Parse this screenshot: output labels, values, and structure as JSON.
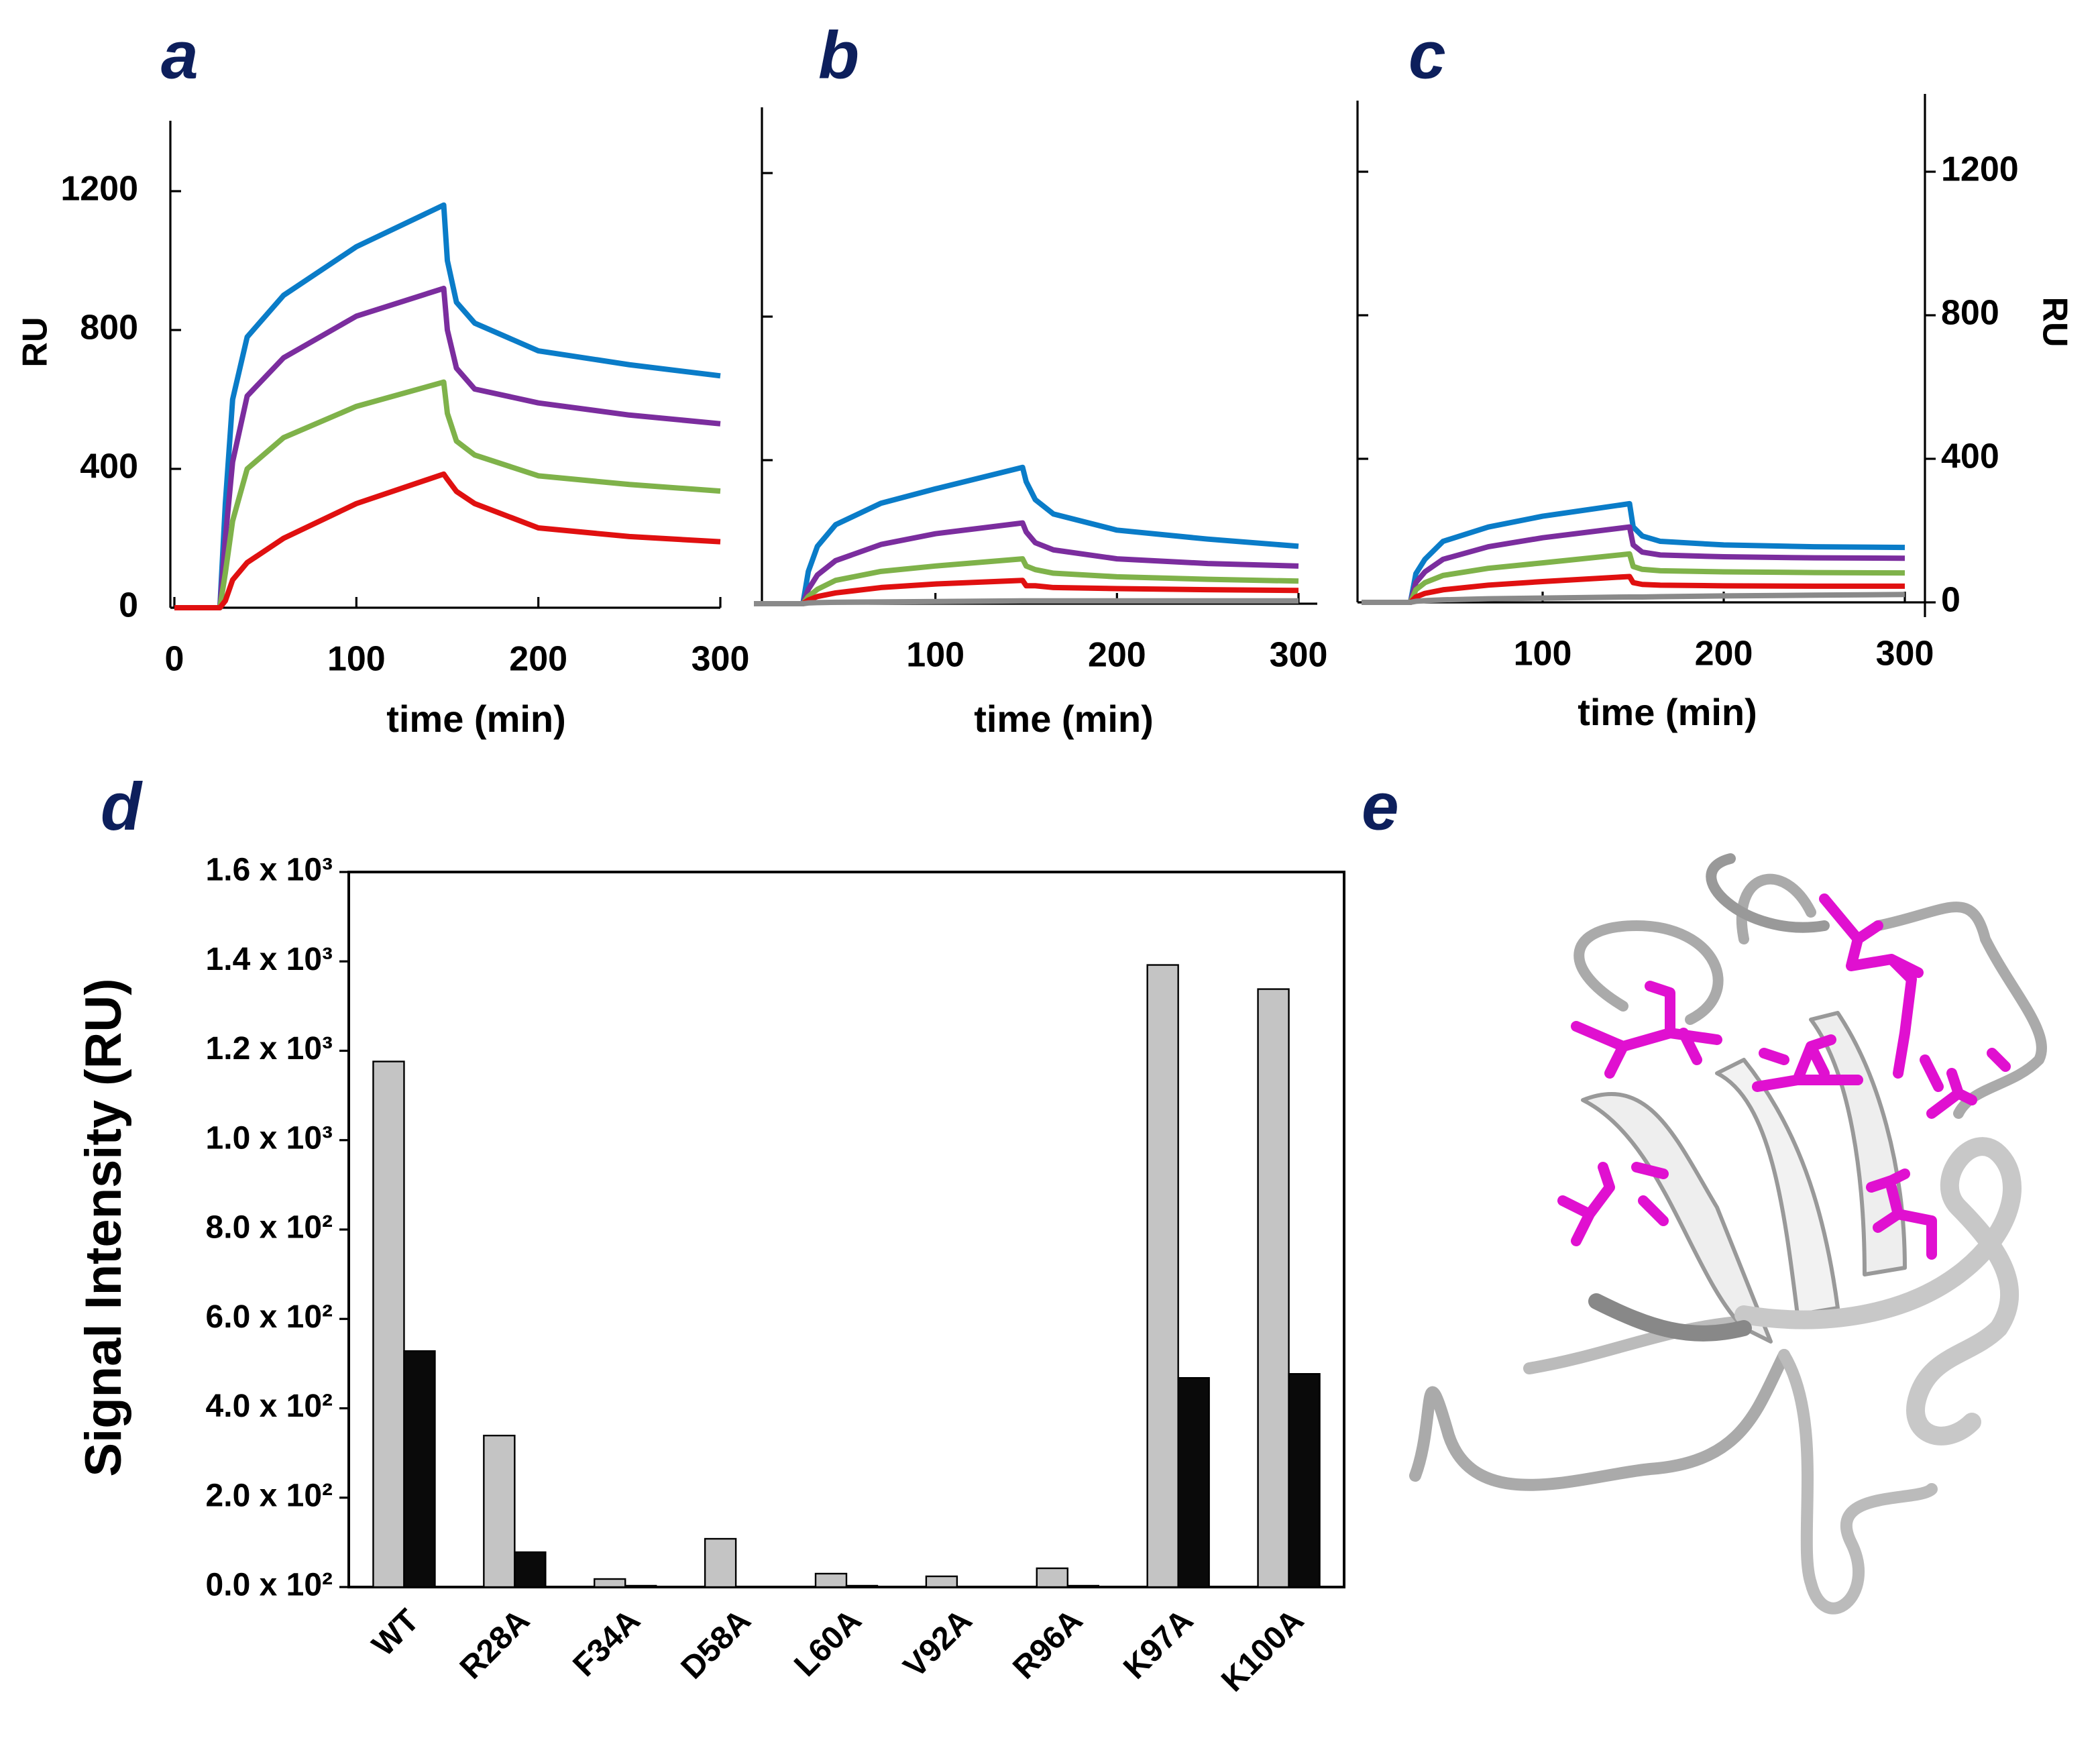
{
  "chart_data": [
    {
      "type": "line",
      "title": "a",
      "xlabel": "time (min)",
      "ylabel": "RU",
      "x": [
        0,
        25,
        28,
        32,
        40,
        60,
        100,
        148,
        150,
        155,
        165,
        200,
        250,
        300
      ],
      "series": [
        {
          "color": "#0a7cc8",
          "values": [
            0,
            0,
            300,
            600,
            780,
            900,
            1040,
            1160,
            1000,
            880,
            820,
            740,
            700,
            668
          ]
        },
        {
          "color": "#7b2d9e",
          "values": [
            0,
            0,
            200,
            420,
            610,
            720,
            840,
            920,
            800,
            690,
            630,
            590,
            555,
            530
          ]
        },
        {
          "color": "#7fb24a",
          "values": [
            0,
            0,
            100,
            250,
            400,
            490,
            580,
            650,
            560,
            480,
            440,
            380,
            355,
            336
          ]
        },
        {
          "color": "#e01010",
          "values": [
            0,
            0,
            20,
            80,
            130,
            200,
            300,
            385,
            370,
            335,
            300,
            230,
            205,
            190
          ]
        }
      ],
      "xlim": [
        0,
        300
      ],
      "xticks": [
        0,
        100,
        200,
        300
      ],
      "ylim": [
        0,
        1400
      ],
      "yticks": [
        0,
        400,
        800,
        1200
      ]
    },
    {
      "type": "line",
      "title": "b",
      "xlabel": "time (min)",
      "x": [
        0,
        27,
        30,
        35,
        45,
        70,
        100,
        148,
        150,
        155,
        165,
        200,
        250,
        300
      ],
      "series": [
        {
          "color": "#0a7cc8",
          "values": [
            0,
            0,
            90,
            160,
            220,
            280,
            320,
            380,
            340,
            290,
            250,
            205,
            180,
            160
          ]
        },
        {
          "color": "#7b2d9e",
          "values": [
            0,
            0,
            40,
            80,
            120,
            165,
            195,
            225,
            200,
            170,
            150,
            125,
            112,
            105
          ]
        },
        {
          "color": "#7fb24a",
          "values": [
            0,
            0,
            20,
            40,
            65,
            90,
            105,
            125,
            105,
            95,
            85,
            75,
            68,
            63
          ]
        },
        {
          "color": "#e01010",
          "values": [
            0,
            0,
            10,
            20,
            30,
            45,
            55,
            65,
            50,
            50,
            45,
            42,
            39,
            37
          ]
        },
        {
          "color": "#8a8a8a",
          "values": [
            0,
            0,
            2,
            3,
            4,
            5,
            6,
            8,
            8,
            8,
            8,
            8,
            8,
            8
          ]
        }
      ],
      "xlim": [
        0,
        300
      ],
      "xticks": [
        100,
        200,
        300
      ],
      "ylim": [
        0,
        1400
      ],
      "yticks": [
        0,
        400,
        800,
        1200
      ],
      "ytick_labels": false
    },
    {
      "type": "line",
      "title": "c",
      "xlabel": "time (min)",
      "ylabel": "RU",
      "x": [
        0,
        27,
        30,
        35,
        45,
        70,
        100,
        148,
        150,
        155,
        165,
        200,
        250,
        300
      ],
      "series": [
        {
          "color": "#0a7cc8",
          "values": [
            0,
            0,
            80,
            120,
            170,
            210,
            240,
            275,
            210,
            185,
            170,
            160,
            155,
            153
          ]
        },
        {
          "color": "#7b2d9e",
          "values": [
            0,
            0,
            55,
            85,
            120,
            155,
            180,
            210,
            160,
            140,
            132,
            127,
            124,
            123
          ]
        },
        {
          "color": "#7fb24a",
          "values": [
            0,
            0,
            35,
            55,
            75,
            95,
            110,
            135,
            100,
            92,
            88,
            85,
            83,
            82
          ]
        },
        {
          "color": "#e01010",
          "values": [
            0,
            0,
            15,
            25,
            35,
            48,
            58,
            72,
            55,
            50,
            48,
            46,
            45,
            45
          ]
        },
        {
          "color": "#8a8a8a",
          "values": [
            0,
            0,
            3,
            5,
            7,
            10,
            12,
            15,
            15,
            15,
            16,
            18,
            20,
            22
          ]
        }
      ],
      "xlim": [
        0,
        300
      ],
      "xticks": [
        100,
        200,
        300
      ],
      "ylim": [
        0,
        1400
      ],
      "yticks": [
        0,
        400,
        800,
        1200
      ],
      "y_axis_side": "right"
    },
    {
      "type": "bar",
      "title": "d",
      "ylabel": "Signal Intensity (RU)",
      "categories": [
        "WT",
        "R28A",
        "F34A",
        "D58A",
        "L60A",
        "V92A",
        "R96A",
        "K97A",
        "K100A"
      ],
      "series": [
        {
          "color": "#c4c4c4",
          "values": [
            1176,
            339,
            18,
            108,
            30,
            24,
            42,
            1392,
            1338
          ]
        },
        {
          "color": "#0a0a0a",
          "values": [
            528,
            78,
            3,
            1,
            3,
            1,
            3,
            468,
            477
          ]
        }
      ],
      "ylim": [
        0,
        1600
      ],
      "yticks": [
        {
          "value": 0,
          "label": "0.0 x 10²"
        },
        {
          "value": 200,
          "label": "2.0 x 10²"
        },
        {
          "value": 400,
          "label": "4.0 x 10²"
        },
        {
          "value": 600,
          "label": "6.0 x 10²"
        },
        {
          "value": 800,
          "label": "8.0 x 10²"
        },
        {
          "value": 1000,
          "label": "1.0 x 10³"
        },
        {
          "value": 1200,
          "label": "1.2 x 10³"
        },
        {
          "value": 1400,
          "label": "1.4 x 10³"
        },
        {
          "value": 1600,
          "label": "1.6 x 10³"
        }
      ]
    }
  ],
  "panel_e": {
    "label": "e"
  }
}
